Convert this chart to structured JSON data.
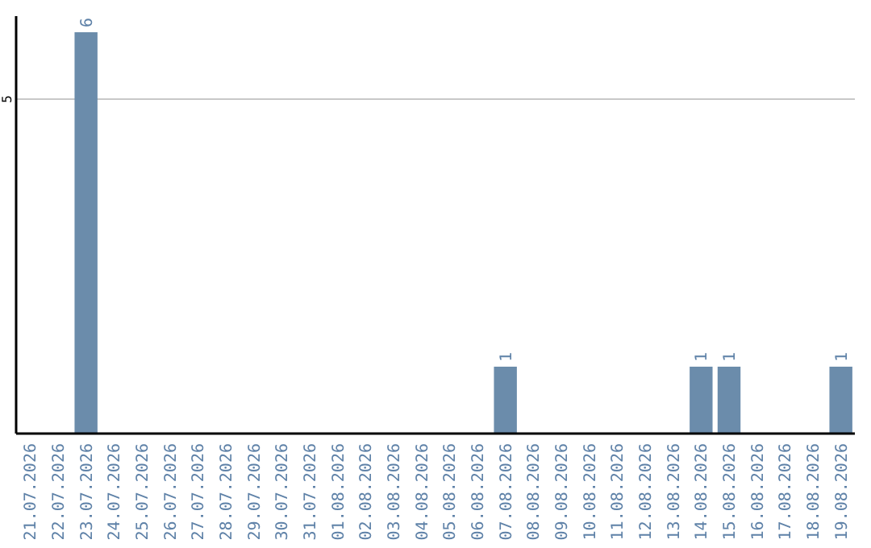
{
  "chart_data": {
    "type": "bar",
    "categories": [
      "21.07.2026",
      "22.07.2026",
      "23.07.2026",
      "24.07.2026",
      "25.07.2026",
      "26.07.2026",
      "27.07.2026",
      "28.07.2026",
      "29.07.2026",
      "30.07.2026",
      "31.07.2026",
      "01.08.2026",
      "02.08.2026",
      "03.08.2026",
      "04.08.2026",
      "05.08.2026",
      "06.08.2026",
      "07.08.2026",
      "08.08.2026",
      "09.08.2026",
      "10.08.2026",
      "11.08.2026",
      "12.08.2026",
      "13.08.2026",
      "14.08.2026",
      "15.08.2026",
      "16.08.2026",
      "17.08.2026",
      "18.08.2026",
      "19.08.2026"
    ],
    "values": [
      0,
      0,
      6,
      0,
      0,
      0,
      0,
      0,
      0,
      0,
      0,
      0,
      0,
      0,
      0,
      0,
      0,
      1,
      0,
      0,
      0,
      0,
      0,
      0,
      1,
      1,
      0,
      0,
      0,
      1
    ],
    "value_labels": [
      null,
      null,
      "6",
      null,
      null,
      null,
      null,
      null,
      null,
      null,
      null,
      null,
      null,
      null,
      null,
      null,
      null,
      "1",
      null,
      null,
      null,
      null,
      null,
      null,
      "1",
      "1",
      null,
      null,
      null,
      "1"
    ],
    "color": "#6b8cab",
    "ylim": [
      0,
      6
    ],
    "yticks": [
      5
    ],
    "grid": "y"
  }
}
